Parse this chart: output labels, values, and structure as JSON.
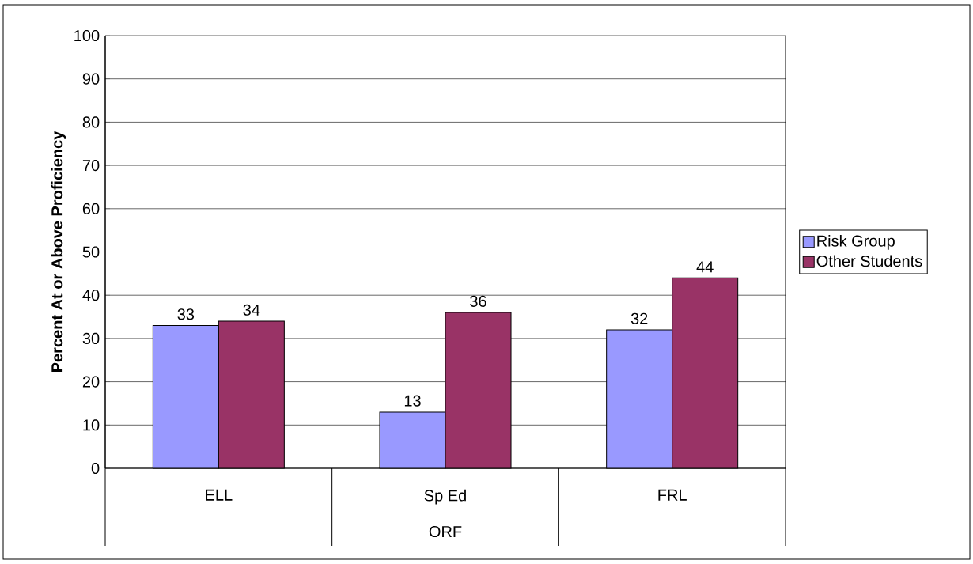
{
  "chart_data": {
    "type": "bar",
    "xlabel": "ORF",
    "ylabel": "Percent At or Above Proficiency",
    "categories": [
      "ELL",
      "Sp Ed",
      "FRL"
    ],
    "series": [
      {
        "name": "Risk Group",
        "color": "#9999ff",
        "values": [
          33,
          13,
          32
        ]
      },
      {
        "name": "Other Students",
        "color": "#993366",
        "values": [
          34,
          36,
          44
        ]
      }
    ],
    "ylim": [
      0,
      100
    ],
    "yticks": [
      0,
      10,
      20,
      30,
      40,
      50,
      60,
      70,
      80,
      90,
      100
    ],
    "grid": "y",
    "legend": "right",
    "data_labels": true
  }
}
